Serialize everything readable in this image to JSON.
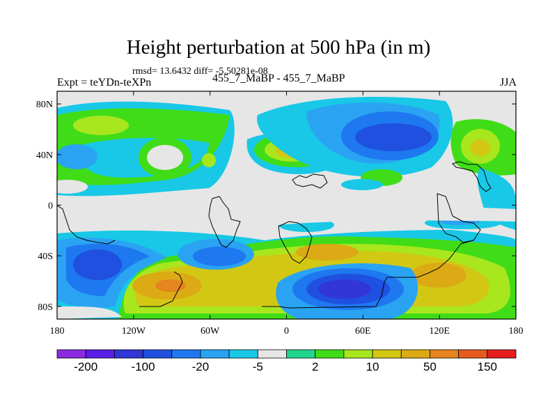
{
  "title": "Height perturbation at 500 hPa (in m)",
  "stats": "rmsd= 13.6432 diff= -5.50281e-08",
  "experiment": "Expt = teYDn-teXPn",
  "runs": "455_7_MaBP - 455_7_MaBP",
  "season": "JJA",
  "axes": {
    "x_ticks": [
      {
        "value": -180,
        "label": "180"
      },
      {
        "value": -120,
        "label": "120W"
      },
      {
        "value": -60,
        "label": "60W"
      },
      {
        "value": 0,
        "label": "0"
      },
      {
        "value": 60,
        "label": "60E"
      },
      {
        "value": 120,
        "label": "120E"
      },
      {
        "value": 180,
        "label": "180"
      }
    ],
    "y_ticks": [
      {
        "value": 80,
        "label": "80N"
      },
      {
        "value": 40,
        "label": "40N"
      },
      {
        "value": 0,
        "label": "0"
      },
      {
        "value": -40,
        "label": "40S"
      },
      {
        "value": -80,
        "label": "80S"
      }
    ]
  },
  "colorbar": {
    "colors": [
      "#8a2be2",
      "#5a1ee6",
      "#3236d6",
      "#1f50e0",
      "#1e78f0",
      "#2aa3f2",
      "#18c8e6",
      "#e6e6e6",
      "#20d68c",
      "#40dc18",
      "#a8e61e",
      "#d2c814",
      "#dcaa14",
      "#e6841e",
      "#e65a1e",
      "#e61e1e"
    ],
    "labels": [
      "-200",
      "-100",
      "-20",
      "-5",
      "2",
      "10",
      "50",
      "150"
    ]
  },
  "colors": {
    "background": "#e6e6e6",
    "teal": "#18c8e6",
    "light_blue": "#2aa3f2",
    "mid_blue": "#1e78f0",
    "blue": "#1f50e0",
    "deep_blue": "#3236d6",
    "green_teal": "#20d68c",
    "green": "#40dc18",
    "yellow_green": "#a8e61e",
    "olive": "#d2c814",
    "orange": "#dcaa14",
    "dark_orange": "#e6841e"
  }
}
